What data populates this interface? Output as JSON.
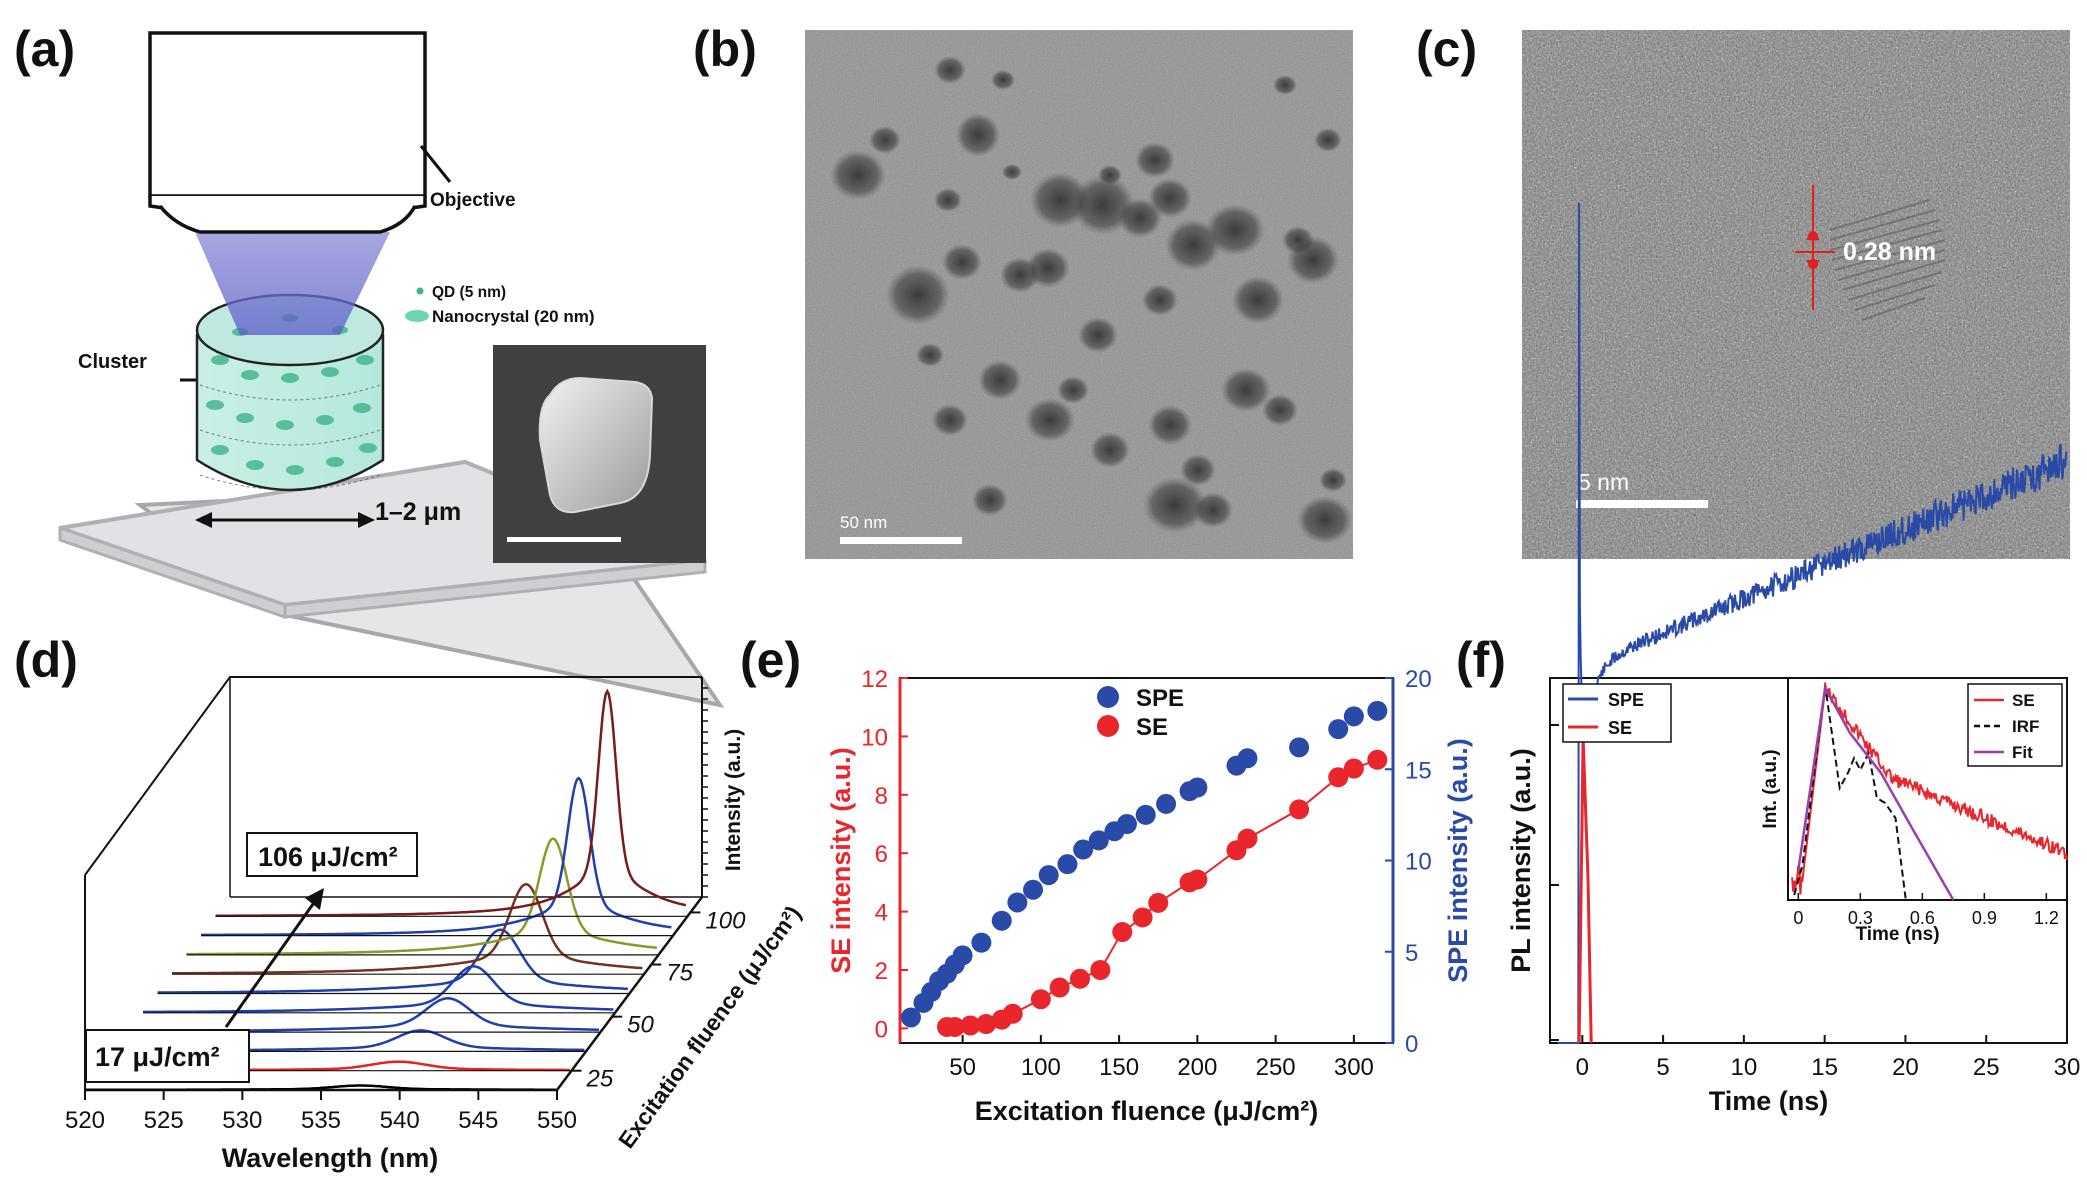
{
  "panels": {
    "a": {
      "label": "(a)",
      "objective_label": "Objective",
      "legend_qd": "QD (5 nm)",
      "legend_nanocrystal": "Nanocrystal (20 nm)",
      "cluster_label": "Cluster",
      "size_label": "1–2 μm"
    },
    "b": {
      "label": "(b)",
      "scalebar": "50 nm"
    },
    "c": {
      "label": "(c)",
      "scalebar": "5 nm",
      "spacing": "0.28 nm"
    },
    "d": {
      "label": "(d)",
      "fluence_high": "106 μJ/cm²",
      "fluence_low": "17 μJ/cm²"
    },
    "e": {
      "label": "(e)"
    },
    "f": {
      "label": "(f)"
    }
  },
  "chart_data": [
    {
      "id": "d",
      "type": "line",
      "title": "",
      "xlabel": "Wavelength (nm)",
      "zlabel": "Excitation fluence (μJ/cm²)",
      "ylabel": "Intensity (a.u.)",
      "xlim": [
        520,
        550
      ],
      "xticks": [
        "520",
        "525",
        "530",
        "535",
        "540",
        "545",
        "550"
      ],
      "zticks": [
        "25",
        "50",
        "75",
        "100"
      ],
      "series": [
        {
          "color": "#000000",
          "peak": 537.5,
          "amp": 0.06,
          "fwhm": 4
        },
        {
          "color": "#e8221f",
          "peak": 539.0,
          "amp": 0.12,
          "fwhm": 4
        },
        {
          "color": "#1f3fae",
          "peak": 539.5,
          "amp": 0.28,
          "fwhm": 3.5
        },
        {
          "color": "#1f3fae",
          "peak": 540.3,
          "amp": 0.45,
          "fwhm": 3.2
        },
        {
          "color": "#1f3fae",
          "peak": 541.0,
          "amp": 0.62,
          "fwhm": 3.0
        },
        {
          "color": "#1f3fae",
          "peak": 541.8,
          "amp": 0.85,
          "fwhm": 2.8
        },
        {
          "color": "#7a3020",
          "peak": 542.5,
          "amp": 1.2,
          "fwhm": 2.4
        },
        {
          "color": "#8a9a2a",
          "peak": 543.3,
          "amp": 1.55,
          "fwhm": 2.0
        },
        {
          "color": "#1f3fae",
          "peak": 544.0,
          "amp": 2.1,
          "fwhm": 1.6
        },
        {
          "color": "#7a1a1a",
          "peak": 544.9,
          "amp": 3.0,
          "fwhm": 1.3
        }
      ]
    },
    {
      "id": "e",
      "type": "scatter",
      "title": "",
      "xlabel": "Excitation fluence (μJ/cm²)",
      "ylabel_left": "SE intensity (a.u.)",
      "ylabel_right": "SPE intensity (a.u.)",
      "xlim": [
        10,
        325
      ],
      "ylim_left": [
        -0.5,
        12
      ],
      "ylim_right": [
        0,
        20
      ],
      "xticks": [
        50,
        100,
        150,
        200,
        250,
        300
      ],
      "yticks_left": [
        0,
        2,
        4,
        6,
        8,
        10,
        12
      ],
      "yticks_right": [
        0,
        5,
        10,
        15,
        20
      ],
      "series": [
        {
          "name": "SPE",
          "axis": "right",
          "color": "#2a4aa8",
          "points": [
            [
              17,
              1.4
            ],
            [
              25,
              2.2
            ],
            [
              30,
              2.8
            ],
            [
              35,
              3.4
            ],
            [
              40,
              3.8
            ],
            [
              45,
              4.3
            ],
            [
              50,
              4.8
            ],
            [
              62,
              5.5
            ],
            [
              75,
              6.7
            ],
            [
              85,
              7.7
            ],
            [
              95,
              8.4
            ],
            [
              105,
              9.2
            ],
            [
              117,
              9.8
            ],
            [
              127,
              10.6
            ],
            [
              137,
              11.1
            ],
            [
              147,
              11.6
            ],
            [
              155,
              12.0
            ],
            [
              167,
              12.5
            ],
            [
              180,
              13.1
            ],
            [
              195,
              13.8
            ],
            [
              200,
              14.0
            ],
            [
              225,
              15.2
            ],
            [
              232,
              15.6
            ],
            [
              265,
              16.2
            ],
            [
              290,
              17.2
            ],
            [
              300,
              17.9
            ],
            [
              315,
              18.2
            ]
          ]
        },
        {
          "name": "SE",
          "axis": "left",
          "color": "#e8262b",
          "points": [
            [
              40,
              0.05
            ],
            [
              45,
              0.05
            ],
            [
              55,
              0.1
            ],
            [
              65,
              0.15
            ],
            [
              75,
              0.3
            ],
            [
              82,
              0.5
            ],
            [
              100,
              1.0
            ],
            [
              112,
              1.4
            ],
            [
              125,
              1.7
            ],
            [
              138,
              2.0
            ],
            [
              152,
              3.3
            ],
            [
              165,
              3.8
            ],
            [
              175,
              4.3
            ],
            [
              195,
              5.0
            ],
            [
              200,
              5.1
            ],
            [
              225,
              6.1
            ],
            [
              232,
              6.5
            ],
            [
              265,
              7.5
            ],
            [
              290,
              8.6
            ],
            [
              300,
              8.9
            ],
            [
              315,
              9.2
            ]
          ]
        }
      ]
    },
    {
      "id": "f",
      "type": "line",
      "title": "",
      "xlabel": "Time (ns)",
      "ylabel": "PL intensity (a.u.)",
      "xlim": [
        -2,
        30
      ],
      "xticks": [
        0,
        5,
        10,
        15,
        20,
        25,
        30
      ],
      "yscale": "log",
      "legend": [
        "SPE",
        "SE"
      ],
      "series_colors": {
        "SPE": "#2a4aa8",
        "SE": "#e8262b"
      },
      "inset": {
        "xlabel": "Time (ns)",
        "ylabel": "Int. (a.u.)",
        "xlim": [
          -0.05,
          1.3
        ],
        "xticks": [
          "0",
          "0.3",
          "0.6",
          "0.9",
          "1.2"
        ],
        "legend": [
          "SE",
          "IRF",
          "Fit"
        ],
        "colors": {
          "SE": "#e8262b",
          "IRF": "#111111",
          "Fit": "#9b3fb0"
        }
      }
    }
  ]
}
